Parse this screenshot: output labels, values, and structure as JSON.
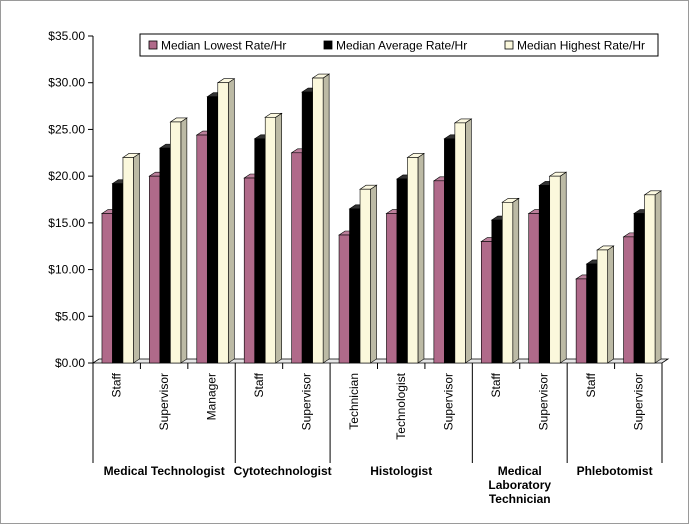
{
  "chart_data": {
    "type": "bar",
    "ylim": [
      0,
      35
    ],
    "ytick_step": 5,
    "ytick_labels": [
      "$0.00",
      "$5.00",
      "$10.00",
      "$15.00",
      "$20.00",
      "$25.00",
      "$30.00",
      "$35.00"
    ],
    "legend_position": "top-right",
    "grid": false,
    "style": "3d-clustered-columns",
    "groups": [
      {
        "name": "Medical Technologist",
        "categories": [
          "Staff",
          "Supervisor",
          "Manager"
        ]
      },
      {
        "name": "Cytotechnologist",
        "categories": [
          "Staff",
          "Supervisor"
        ]
      },
      {
        "name": "Histologist",
        "categories": [
          "Technician",
          "Technologist",
          "Supervisor"
        ]
      },
      {
        "name": "Medical Laboratory Technician",
        "name_lines": [
          "Medical",
          "Laboratory",
          "Technician"
        ],
        "categories": [
          "Staff",
          "Supervisor"
        ]
      },
      {
        "name": "Phlebotomist",
        "categories": [
          "Staff",
          "Supervisor"
        ]
      }
    ],
    "series": [
      {
        "name": "Median Lowest Rate/Hr",
        "color": "#b06a8a",
        "values": [
          16.0,
          20.0,
          24.4,
          19.8,
          22.5,
          13.7,
          16.0,
          19.5,
          13.0,
          16.0,
          9.0,
          13.5
        ]
      },
      {
        "name": "Median Average Rate/Hr",
        "color": "#000000",
        "values": [
          19.2,
          23.0,
          28.5,
          24.0,
          29.0,
          16.5,
          19.7,
          24.0,
          15.3,
          19.0,
          10.6,
          16.0
        ]
      },
      {
        "name": "Median Highest Rate/Hr",
        "color": "#fbf8dc",
        "values": [
          22.0,
          25.8,
          30.0,
          26.3,
          30.5,
          18.6,
          22.0,
          25.7,
          17.2,
          20.0,
          12.1,
          18.0
        ]
      }
    ]
  }
}
